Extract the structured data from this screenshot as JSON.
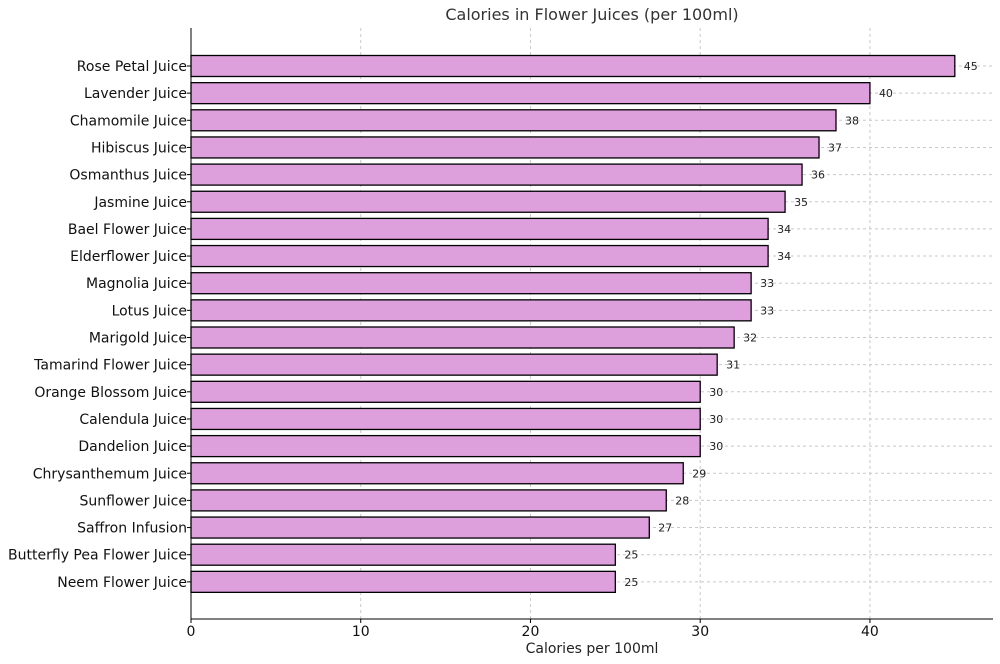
{
  "chart_data": {
    "type": "bar",
    "orientation": "horizontal",
    "title": "Calories in Flower Juices (per 100ml)",
    "xlabel": "Calories per 100ml",
    "ylabel": "",
    "xlim": [
      0,
      47.25
    ],
    "xticks": [
      0,
      10,
      20,
      30,
      40
    ],
    "grid": true,
    "bar_color": "#dda0dd",
    "bar_edge_color": "#000000",
    "categories": [
      "Rose Petal Juice",
      "Lavender Juice",
      "Chamomile Juice",
      "Hibiscus Juice",
      "Osmanthus Juice",
      "Jasmine Juice",
      "Bael Flower Juice",
      "Elderflower Juice",
      "Magnolia Juice",
      "Lotus Juice",
      "Marigold Juice",
      "Tamarind Flower Juice",
      "Orange Blossom Juice",
      "Calendula Juice",
      "Dandelion Juice",
      "Chrysanthemum Juice",
      "Sunflower Juice",
      "Saffron Infusion",
      "Butterfly Pea Flower Juice",
      "Neem Flower Juice"
    ],
    "values": [
      45,
      40,
      38,
      37,
      36,
      35,
      34,
      34,
      33,
      33,
      32,
      31,
      30,
      30,
      30,
      29,
      28,
      27,
      25,
      25
    ]
  }
}
